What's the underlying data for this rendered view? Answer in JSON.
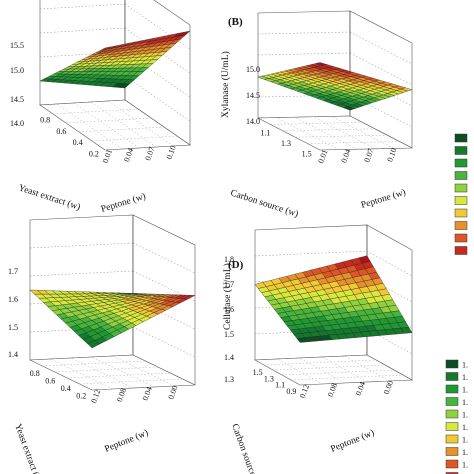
{
  "chart_data": [
    {
      "type": "surface3d",
      "panel_label": "",
      "xlabel": "Yeast extract (w)",
      "ylabel": "Peptone (w)",
      "zlabel": "",
      "x_ticks": [
        "0.2",
        "0.4",
        "0.6",
        "0.8"
      ],
      "y_ticks": [
        "0.01",
        "0.04",
        "0.07",
        "0.10"
      ],
      "z_ticks": [
        "15.5",
        "15.0",
        "14.5",
        "14.0"
      ],
      "xlim": [
        0.2,
        0.8
      ],
      "ylim": [
        0.01,
        0.1
      ],
      "zlim": [
        13.6,
        15.6
      ],
      "surface_corners": {
        "x_min_y_min": 15.3,
        "x_min_y_max": 15.5,
        "x_max_y_min": 14.0,
        "x_max_y_max": 13.8
      }
    },
    {
      "type": "surface3d",
      "panel_label": "(B)",
      "xlabel": "Carbon source (w)",
      "ylabel": "Peptone (w)",
      "zlabel": "Xylanase (U/mL)",
      "x_ticks": [
        "1.5",
        "1.3",
        "1.1"
      ],
      "y_ticks": [
        "0.01",
        "0.04",
        "0.07",
        "0.10"
      ],
      "z_ticks": [
        "15.0",
        "14.5",
        "14.0"
      ],
      "xlim": [
        0.9,
        1.5
      ],
      "ylim": [
        0.01,
        0.1
      ],
      "zlim": [
        13.8,
        15.6
      ],
      "surface_corners": {
        "x_min_y_min": 15.3,
        "x_min_y_max": 14.8,
        "x_max_y_min": 14.5,
        "x_max_y_max": 13.9
      }
    },
    {
      "type": "surface3d",
      "panel_label": "",
      "xlabel": "Yeast extract (w)",
      "ylabel": "Peptone (w)",
      "zlabel": "",
      "x_ticks": [
        "0.2",
        "0.4",
        "0.6",
        "0.8"
      ],
      "y_ticks": [
        "0.12",
        "0.08",
        "0.04",
        "0.00"
      ],
      "z_ticks": [
        "1.7",
        "1.6",
        "1.5",
        "1.4"
      ],
      "xlim": [
        0.2,
        0.8
      ],
      "ylim": [
        0.0,
        0.12
      ],
      "zlim": [
        1.3,
        1.8
      ],
      "surface_corners": {
        "x_min_y_min": 1.45,
        "x_min_y_max": 1.62,
        "x_max_y_min": 1.55,
        "x_max_y_max": 1.52
      }
    },
    {
      "type": "surface3d",
      "panel_label": "(D)",
      "xlabel": "Carbon source (w)",
      "ylabel": "Peptone (w)",
      "zlabel": "Cellulase (U/mL)",
      "x_ticks": [
        "0.9",
        "1.1",
        "1.3",
        "1.5"
      ],
      "y_ticks": [
        "0.12",
        "0.08",
        "0.04",
        "0.00"
      ],
      "z_ticks": [
        "1.8",
        "1.7",
        "1.6",
        "1.5",
        "1.4",
        "1.3"
      ],
      "xlim": [
        0.9,
        1.5
      ],
      "ylim": [
        0.0,
        0.12
      ],
      "zlim": [
        1.3,
        1.85
      ],
      "surface_corners": {
        "x_min_y_min": 1.48,
        "x_min_y_max": 1.5,
        "x_max_y_min": 1.62,
        "x_max_y_max": 1.72
      }
    }
  ],
  "legends": [
    {
      "entries": [
        "",
        "",
        "",
        "",
        "",
        "",
        "",
        "",
        "",
        ""
      ]
    },
    {
      "entries": [
        "1.",
        "1.",
        "1.",
        "1.",
        "1.",
        "1.",
        "1.",
        "1.",
        "1.",
        "1."
      ]
    }
  ],
  "colors": [
    "#0d4d22",
    "#137a2c",
    "#1f9a33",
    "#46b53a",
    "#8fd23e",
    "#d8e83c",
    "#f2c933",
    "#e8902a",
    "#de5624",
    "#c92a1e",
    "#a3151a"
  ]
}
